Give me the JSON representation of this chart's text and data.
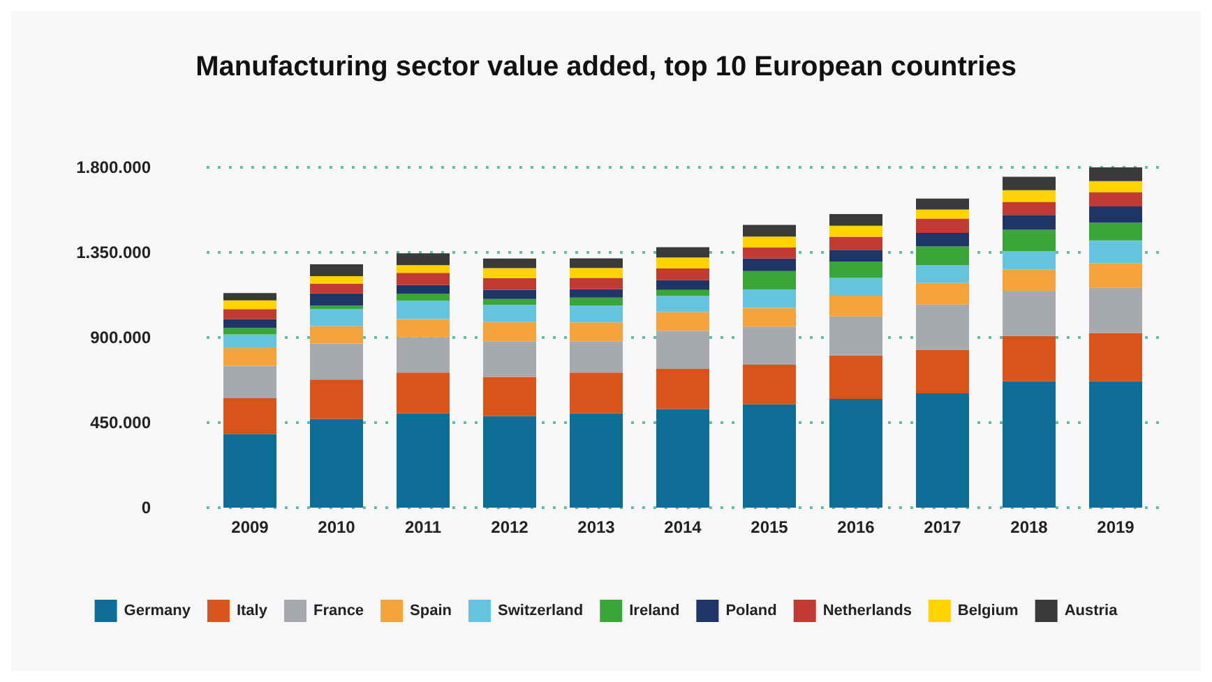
{
  "chart_data": {
    "type": "bar",
    "stacked": true,
    "title": "Manufacturing sector value added, top 10 European countries",
    "categories": [
      "2009",
      "2010",
      "2011",
      "2012",
      "2013",
      "2014",
      "2015",
      "2016",
      "2017",
      "2018",
      "2019"
    ],
    "series": [
      {
        "name": "Germany",
        "color": "#0e6e96",
        "values": [
          390000,
          469000,
          499000,
          485000,
          499000,
          522000,
          547000,
          575000,
          605000,
          669000,
          669000
        ]
      },
      {
        "name": "Italy",
        "color": "#d9541a",
        "values": [
          189000,
          209000,
          216000,
          207000,
          216000,
          212000,
          209000,
          230000,
          230000,
          239000,
          255000
        ]
      },
      {
        "name": "France",
        "color": "#a6a9ad",
        "values": [
          172000,
          191000,
          186000,
          189000,
          166000,
          202000,
          202000,
          207000,
          239000,
          239000,
          239000
        ]
      },
      {
        "name": "Spain",
        "color": "#f4a33d",
        "values": [
          97000,
          92000,
          97000,
          101000,
          99000,
          99000,
          99000,
          113000,
          115000,
          113000,
          131000
        ]
      },
      {
        "name": "Switzerland",
        "color": "#67c4de",
        "values": [
          69000,
          90000,
          97000,
          90000,
          90000,
          85000,
          97000,
          90000,
          94000,
          97000,
          120000
        ]
      },
      {
        "name": "Ireland",
        "color": "#3aa63a",
        "values": [
          34000,
          18000,
          37000,
          32000,
          41000,
          32000,
          97000,
          87000,
          99000,
          113000,
          94000
        ]
      },
      {
        "name": "Poland",
        "color": "#1f3566",
        "values": [
          46000,
          64000,
          46000,
          48000,
          44000,
          51000,
          67000,
          62000,
          71000,
          78000,
          85000
        ]
      },
      {
        "name": "Netherlands",
        "color": "#c23b33",
        "values": [
          53000,
          51000,
          64000,
          62000,
          60000,
          62000,
          58000,
          69000,
          76000,
          69000,
          76000
        ]
      },
      {
        "name": "Belgium",
        "color": "#ffd200",
        "values": [
          46000,
          41000,
          41000,
          53000,
          53000,
          58000,
          58000,
          58000,
          48000,
          62000,
          58000
        ]
      },
      {
        "name": "Austria",
        "color": "#3a3a3a",
        "values": [
          39000,
          62000,
          62000,
          51000,
          51000,
          55000,
          62000,
          62000,
          58000,
          71000,
          73000
        ]
      }
    ],
    "ylim": [
      0,
      1800000
    ],
    "yticks": [
      {
        "value": 0,
        "label": "0"
      },
      {
        "value": 450000,
        "label": "450.000"
      },
      {
        "value": 900000,
        "label": "900.000"
      },
      {
        "value": 1350000,
        "label": "1.350.000"
      },
      {
        "value": 1800000,
        "label": "1.800.000"
      }
    ],
    "grid": "y",
    "legend": "bottom"
  }
}
